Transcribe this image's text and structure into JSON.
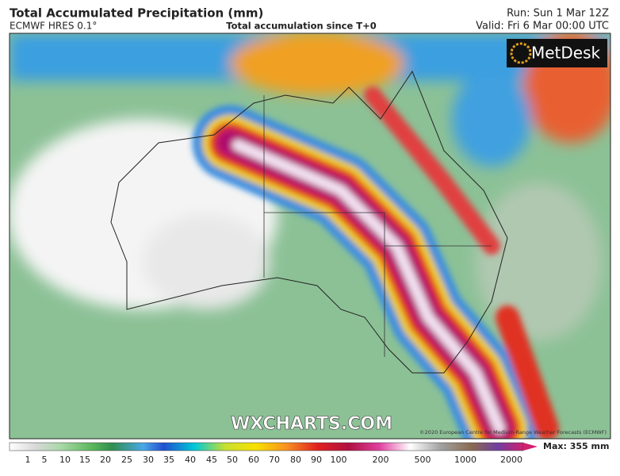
{
  "header": {
    "title": "Total Accumulated Precipitation (mm)",
    "model": "ECMWF HRES 0.1°",
    "subtitle": "Total accumulation since T+0",
    "run": "Run: Sun 1 Mar 12Z",
    "valid": "Valid: Fri 6 Mar 00:00 UTC"
  },
  "logo": "MetDesk",
  "watermark": "WXCHARTS.COM",
  "copyright": "©2020 European Centre for Medium-Range Weather Forecasts (ECMWF)",
  "legend": {
    "labels": [
      "1",
      "5",
      "10",
      "15",
      "20",
      "25",
      "30",
      "35",
      "40",
      "45",
      "50",
      "60",
      "70",
      "80",
      "90",
      "100",
      "200",
      "500",
      "1000",
      "2000"
    ],
    "max": "Max: 355 mm"
  }
}
